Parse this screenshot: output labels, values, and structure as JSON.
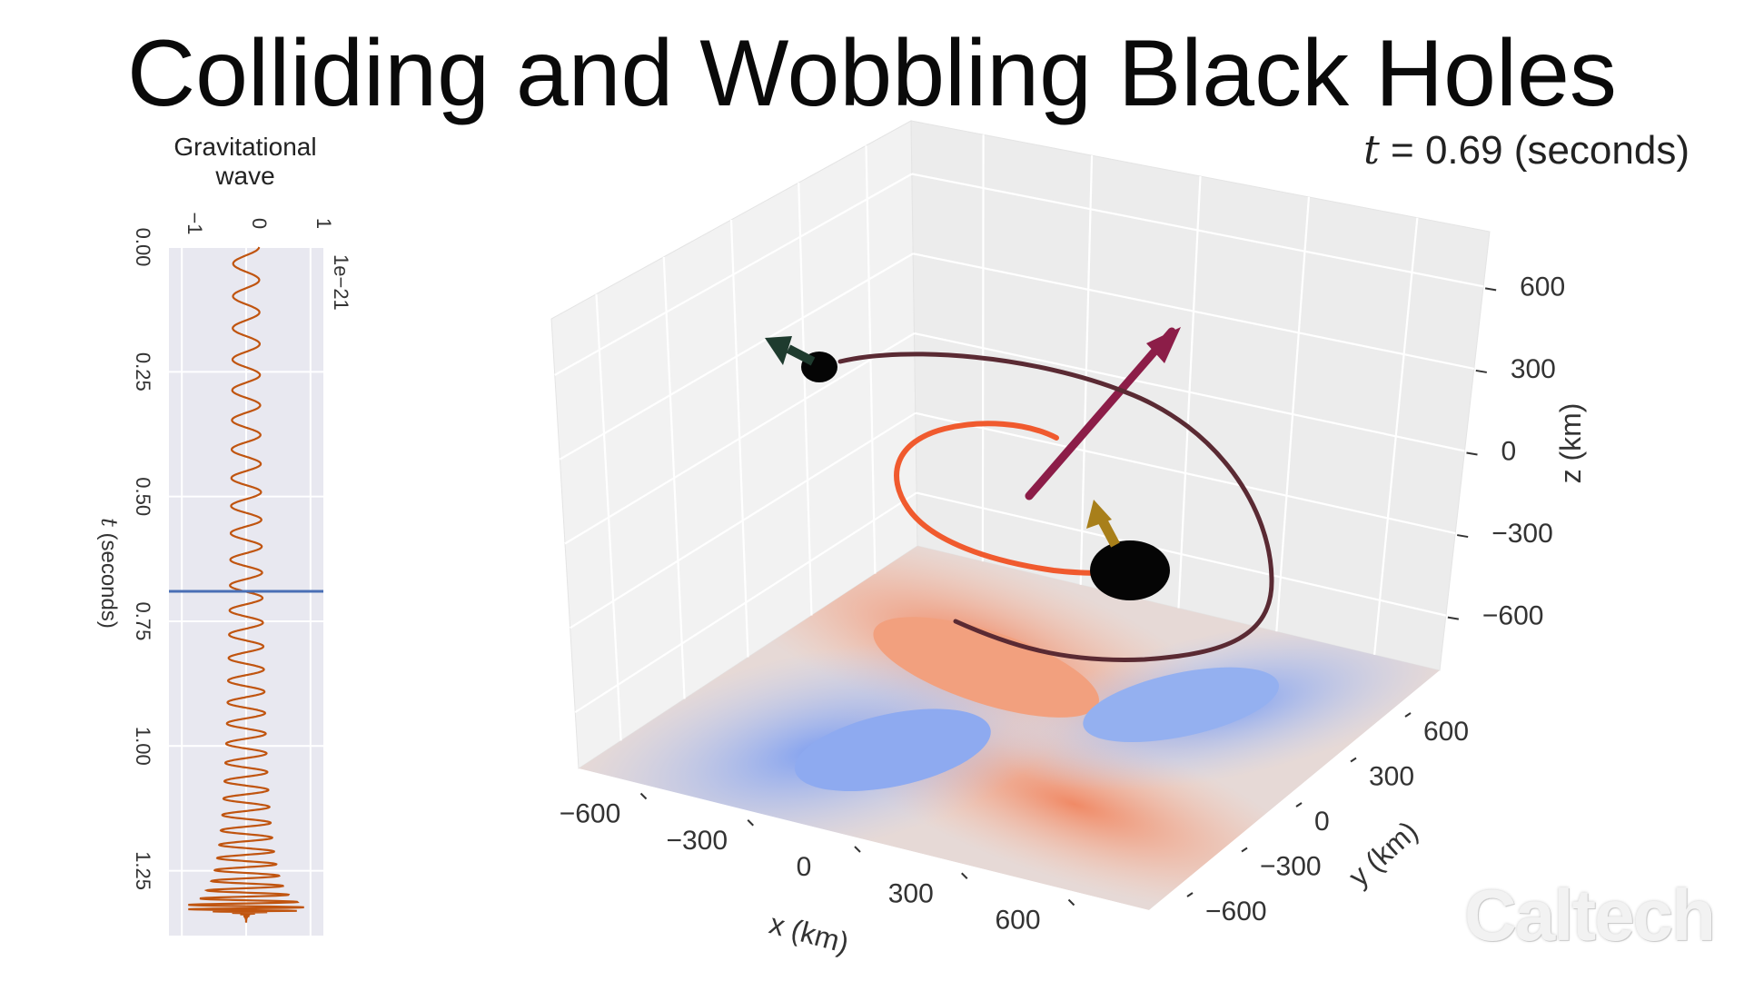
{
  "title": "Colliding and Wobbling Black Holes",
  "watermark": "Caltech",
  "time_readout": {
    "var": "t",
    "eq": " = 0.69 (seconds)"
  },
  "chart_data": [
    {
      "type": "line",
      "title": "Gravitational wave",
      "title_lines": [
        "Gravitational",
        "wave"
      ],
      "xlabel": "",
      "ylabel": "t (seconds)",
      "ylabel_var": "t",
      "ylabel_rest": " (seconds)",
      "orientation": "vertical",
      "x_scale_label": "1e−21",
      "xticks": [
        "−1",
        "0",
        "1"
      ],
      "xtick_values": [
        -1,
        0,
        1
      ],
      "xlim": [
        -1.2,
        1.2
      ],
      "yticks": [
        "0.00",
        "0.25",
        "0.50",
        "0.75",
        "1.00",
        "1.25"
      ],
      "ytick_values": [
        0.0,
        0.25,
        0.5,
        0.75,
        1.0,
        1.25
      ],
      "ylim": [
        0.0,
        1.38
      ],
      "current_time": 0.69,
      "grid": true,
      "series": [
        {
          "color": "#c0540f",
          "waveform": "chirp",
          "t_start": 0.0,
          "t_merge": 1.33,
          "amp_start": 0.2,
          "amp_peak": 0.9
        }
      ]
    },
    {
      "type": "scatter3d",
      "xlabel": "x (km)",
      "ylabel": "y (km)",
      "zlabel": "z (km)",
      "xticks": [
        "−600",
        "−300",
        "0",
        "300",
        "600"
      ],
      "yticks": [
        "−600",
        "−300",
        "0",
        "300",
        "600"
      ],
      "zticks": [
        "−600",
        "−300",
        "0",
        "300",
        "600"
      ],
      "tick_values": [
        -600,
        -300,
        0,
        300,
        600
      ],
      "xlim": [
        -800,
        800
      ],
      "ylim": [
        -800,
        800
      ],
      "zlim": [
        -800,
        800
      ],
      "grid": true,
      "colors": {
        "orbit_inner": "#f05a2e",
        "orbit_outer": "#5a2a33",
        "orbital_arrow": "#8c1d48",
        "spin_arrow_small": "#a87f1a",
        "spin_arrow_large": "#1e3b2e",
        "black_hole": "#050505",
        "pane": "#f2f2f2",
        "grid": "#ffffff"
      },
      "black_holes": [
        {
          "name": "large",
          "x": -250,
          "y": 600,
          "z": -600,
          "radius_km": 110
        },
        {
          "name": "small",
          "x": -620,
          "y": -320,
          "z": 350,
          "radius_km": 55
        }
      ],
      "orbital_angular_momentum_arrow": {
        "from": [
          -60,
          120,
          -220
        ],
        "to": [
          40,
          150,
          640
        ]
      },
      "floor_contour": "gravitational-wave strain pattern (quadrupole, red/blue)"
    }
  ]
}
